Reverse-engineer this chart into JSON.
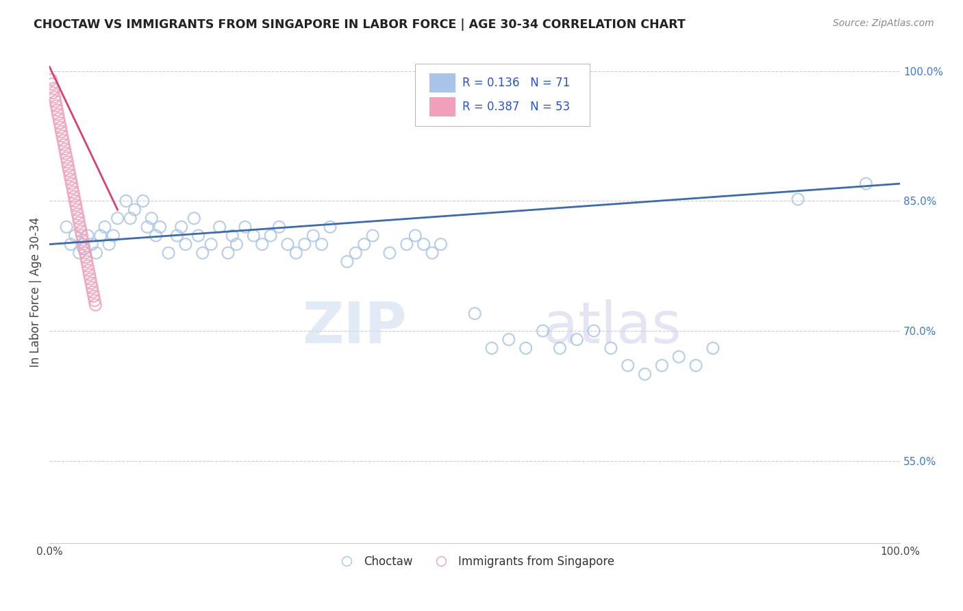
{
  "title": "CHOCTAW VS IMMIGRANTS FROM SINGAPORE IN LABOR FORCE | AGE 30-34 CORRELATION CHART",
  "source": "Source: ZipAtlas.com",
  "ylabel": "In Labor Force | Age 30-34",
  "xlim": [
    0,
    1.0
  ],
  "ylim": [
    0.455,
    1.035
  ],
  "yticks": [
    0.55,
    0.7,
    0.85,
    1.0
  ],
  "yticklabels": [
    "55.0%",
    "70.0%",
    "85.0%",
    "100.0%"
  ],
  "legend_R1": "0.136",
  "legend_N1": "71",
  "legend_R2": "0.387",
  "legend_N2": "53",
  "blue_color": "#a8c4e8",
  "pink_color": "#f0a0b8",
  "blue_line_color": "#3a6ab0",
  "pink_line_color": "#d84070",
  "legend_R_color": "#2255cc",
  "watermark_zip": "ZIP",
  "watermark_atlas": "atlas",
  "choctaw_x": [
    0.02,
    0.025,
    0.03,
    0.035,
    0.04,
    0.045,
    0.05,
    0.055,
    0.06,
    0.065,
    0.07,
    0.075,
    0.08,
    0.09,
    0.095,
    0.1,
    0.11,
    0.115,
    0.12,
    0.125,
    0.13,
    0.14,
    0.15,
    0.155,
    0.16,
    0.17,
    0.175,
    0.18,
    0.19,
    0.2,
    0.21,
    0.215,
    0.22,
    0.23,
    0.24,
    0.25,
    0.26,
    0.27,
    0.28,
    0.29,
    0.3,
    0.31,
    0.32,
    0.33,
    0.35,
    0.36,
    0.37,
    0.38,
    0.4,
    0.42,
    0.43,
    0.44,
    0.45,
    0.46,
    0.5,
    0.52,
    0.54,
    0.56,
    0.58,
    0.6,
    0.62,
    0.64,
    0.66,
    0.68,
    0.7,
    0.72,
    0.74,
    0.76,
    0.78,
    0.88,
    0.96
  ],
  "choctaw_y": [
    0.82,
    0.8,
    0.81,
    0.79,
    0.795,
    0.81,
    0.8,
    0.79,
    0.81,
    0.82,
    0.8,
    0.81,
    0.83,
    0.85,
    0.83,
    0.84,
    0.85,
    0.82,
    0.83,
    0.81,
    0.82,
    0.79,
    0.81,
    0.82,
    0.8,
    0.83,
    0.81,
    0.79,
    0.8,
    0.82,
    0.79,
    0.81,
    0.8,
    0.82,
    0.81,
    0.8,
    0.81,
    0.82,
    0.8,
    0.79,
    0.8,
    0.81,
    0.8,
    0.82,
    0.78,
    0.79,
    0.8,
    0.81,
    0.79,
    0.8,
    0.81,
    0.8,
    0.79,
    0.8,
    0.72,
    0.68,
    0.69,
    0.68,
    0.7,
    0.68,
    0.69,
    0.7,
    0.68,
    0.66,
    0.65,
    0.66,
    0.67,
    0.66,
    0.68,
    0.852,
    0.87
  ],
  "singapore_x": [
    0.002,
    0.003,
    0.004,
    0.005,
    0.006,
    0.007,
    0.008,
    0.009,
    0.01,
    0.011,
    0.012,
    0.013,
    0.014,
    0.015,
    0.016,
    0.017,
    0.018,
    0.019,
    0.02,
    0.021,
    0.022,
    0.023,
    0.024,
    0.025,
    0.026,
    0.027,
    0.028,
    0.029,
    0.03,
    0.031,
    0.032,
    0.033,
    0.034,
    0.035,
    0.036,
    0.037,
    0.038,
    0.039,
    0.04,
    0.041,
    0.042,
    0.043,
    0.044,
    0.045,
    0.046,
    0.047,
    0.048,
    0.049,
    0.05,
    0.051,
    0.052,
    0.053,
    0.054
  ],
  "singapore_y": [
    0.99,
    0.985,
    0.975,
    0.98,
    0.97,
    0.965,
    0.96,
    0.955,
    0.95,
    0.945,
    0.94,
    0.935,
    0.93,
    0.925,
    0.92,
    0.915,
    0.91,
    0.905,
    0.9,
    0.895,
    0.89,
    0.885,
    0.88,
    0.875,
    0.87,
    0.865,
    0.86,
    0.855,
    0.85,
    0.845,
    0.84,
    0.835,
    0.83,
    0.825,
    0.82,
    0.815,
    0.81,
    0.805,
    0.8,
    0.795,
    0.79,
    0.785,
    0.78,
    0.775,
    0.77,
    0.765,
    0.76,
    0.755,
    0.75,
    0.745,
    0.74,
    0.735,
    0.73
  ],
  "blue_trendline_x": [
    0.0,
    1.0
  ],
  "blue_trendline_y": [
    0.8,
    0.87
  ],
  "pink_trendline_x": [
    0.0,
    0.08
  ],
  "pink_trendline_y": [
    1.005,
    0.84
  ]
}
